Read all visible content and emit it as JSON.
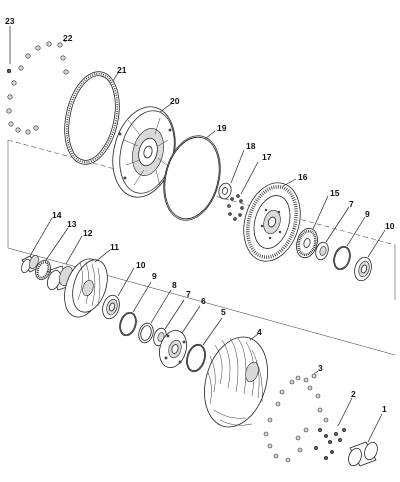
{
  "diagram": {
    "callouts": [
      "23",
      "22",
      "21",
      "20",
      "19",
      "18",
      "17",
      "16",
      "15",
      "7",
      "9",
      "10",
      "14",
      "13",
      "12",
      "11",
      "10",
      "9",
      "8",
      "7",
      "6",
      "5",
      "4",
      "3",
      "2",
      "1"
    ]
  }
}
